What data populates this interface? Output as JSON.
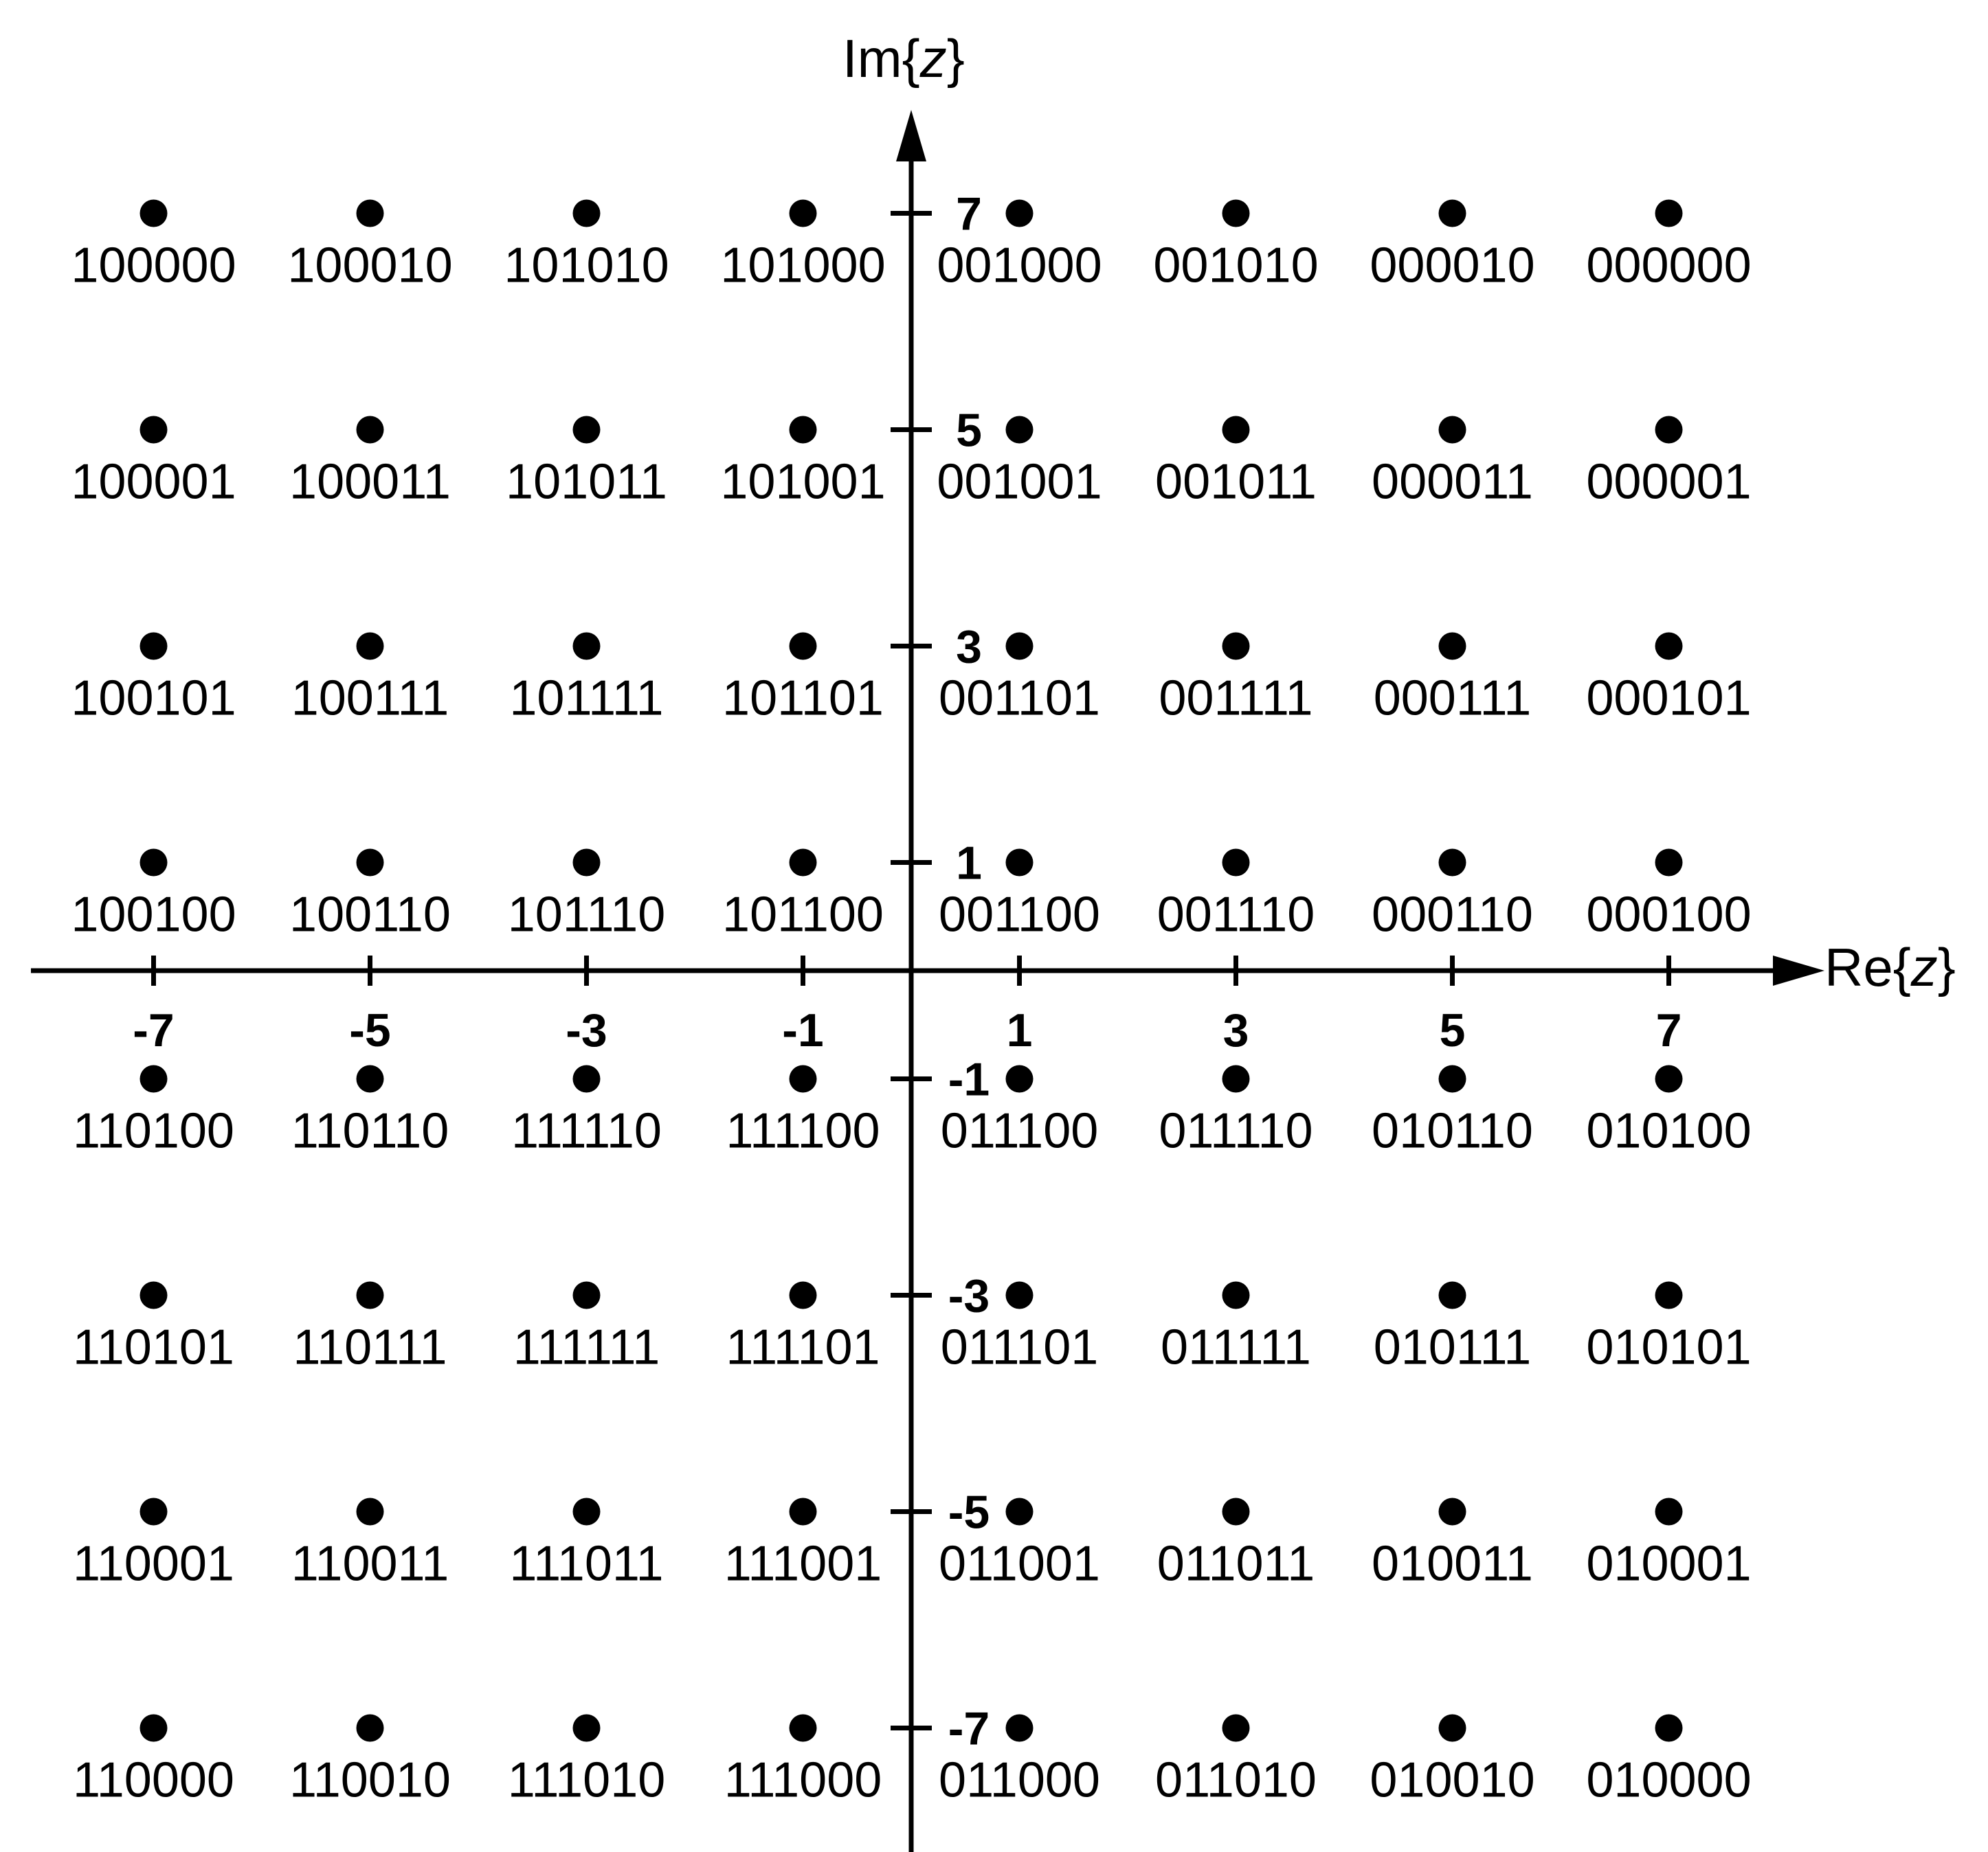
{
  "axes": {
    "x_title": {
      "prefix": "Re{",
      "var": "z",
      "suffix": "}"
    },
    "y_title": {
      "prefix": "Im{",
      "var": "z",
      "suffix": "}"
    }
  },
  "chart_data": {
    "type": "scatter",
    "title": "",
    "xlabel": "Re{z}",
    "ylabel": "Im{z}",
    "x_ticks": [
      "-7",
      "-5",
      "-3",
      "-1",
      "1",
      "3",
      "5",
      "7"
    ],
    "y_ticks": [
      "7",
      "5",
      "3",
      "1",
      "-1",
      "-3",
      "-5",
      "-7"
    ],
    "xlim": [
      -8,
      9
    ],
    "ylim": [
      -8.5,
      8.5
    ],
    "grid": false,
    "x_levels": [
      -7,
      -5,
      -3,
      -1,
      1,
      3,
      5,
      7
    ],
    "y_levels": [
      7,
      5,
      3,
      1,
      -1,
      -3,
      -5,
      -7
    ],
    "bit_labels": [
      [
        "100000",
        "100010",
        "101010",
        "101000",
        "001000",
        "001010",
        "000010",
        "000000"
      ],
      [
        "100001",
        "100011",
        "101011",
        "101001",
        "001001",
        "001011",
        "000011",
        "000001"
      ],
      [
        "100101",
        "100111",
        "101111",
        "101101",
        "001101",
        "001111",
        "000111",
        "000101"
      ],
      [
        "100100",
        "100110",
        "101110",
        "101100",
        "001100",
        "001110",
        "000110",
        "000100"
      ],
      [
        "110100",
        "110110",
        "111110",
        "111100",
        "011100",
        "011110",
        "010110",
        "010100"
      ],
      [
        "110101",
        "110111",
        "111111",
        "111101",
        "011101",
        "011111",
        "010111",
        "010101"
      ],
      [
        "110001",
        "110011",
        "111011",
        "111001",
        "011001",
        "011011",
        "010011",
        "010001"
      ],
      [
        "110000",
        "110010",
        "111010",
        "111000",
        "011000",
        "011010",
        "010010",
        "010000"
      ]
    ]
  }
}
